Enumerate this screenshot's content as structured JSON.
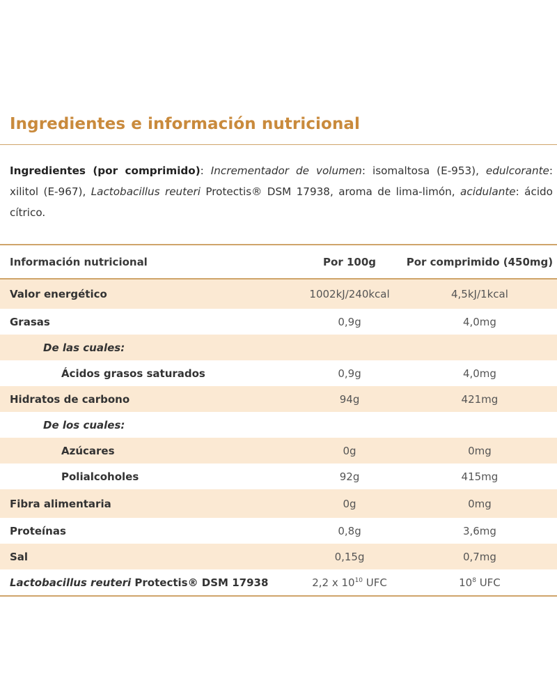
{
  "title": "Ingredientes e información nutricional",
  "ingredients": {
    "label": "Ingredientes (por comprimido)",
    "text1_italic": "Incrementador de volumen",
    "text1": ": isomaltosa (E-953), ",
    "text2_italic": "edulcorante",
    "text2": ": xilitol (E-967), ",
    "text3_italic": "Lactobacillus reuteri",
    "text3": " Protectis® DSM 17938, aroma de lima-limón, ",
    "text4_italic": "acidulante",
    "text4": ": ácido cítrico."
  },
  "table": {
    "headers": [
      "Información nutricional",
      "Por 100g",
      "Por comprimido (450mg)"
    ],
    "rows": [
      {
        "name": "Valor energético",
        "per100": "1002kJ/240kcal",
        "perTab": "4,5kJ/1kcal"
      },
      {
        "name": "Grasas",
        "per100": "0,9g",
        "perTab": "4,0mg"
      },
      {
        "name": "De las cuales:",
        "per100": "",
        "perTab": ""
      },
      {
        "name": "Ácidos grasos saturados",
        "per100": "0,9g",
        "perTab": "4,0mg"
      },
      {
        "name": "Hidratos de carbono",
        "per100": "94g",
        "perTab": "421mg"
      },
      {
        "name": "De los cuales:",
        "per100": "",
        "perTab": ""
      },
      {
        "name": "Azúcares",
        "per100": "0g",
        "perTab": "0mg"
      },
      {
        "name": "Polialcoholes",
        "per100": "92g",
        "perTab": "415mg"
      },
      {
        "name": "Fibra alimentaria",
        "per100": "0g",
        "perTab": "0mg"
      },
      {
        "name": "Proteínas",
        "per100": "0,8g",
        "perTab": "3,6mg"
      },
      {
        "name": "Sal",
        "per100": "0,15g",
        "perTab": "0,7mg"
      }
    ],
    "last": {
      "name_italic": "Lactobacillus reuteri",
      "name_rest": " Protectis® DSM 17938",
      "per100_base": "2,2 x 10",
      "per100_exp": "10",
      "per100_unit": " UFC",
      "perTab_base": "10",
      "perTab_exp": "8",
      "perTab_unit": " UFC"
    }
  },
  "colors": {
    "accent": "#c98a3c",
    "shade": "#fbe9d3",
    "rule": "#cfa46a"
  }
}
